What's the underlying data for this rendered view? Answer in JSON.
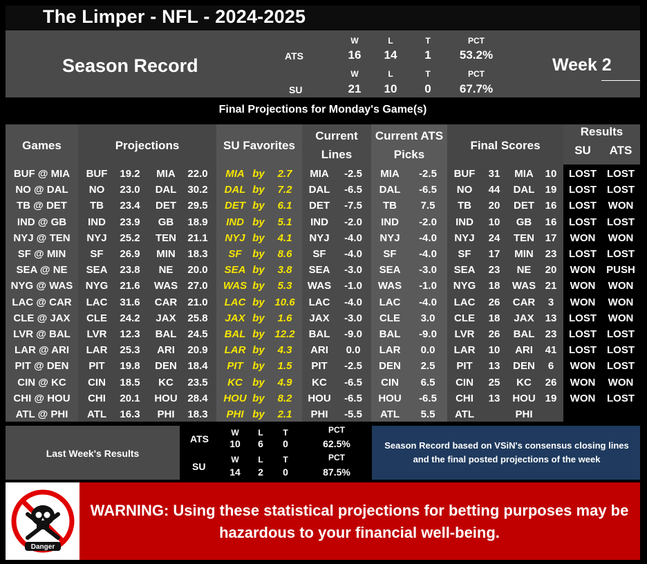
{
  "title": "The Limper - NFL - 2024-2025",
  "season": {
    "label": "Season Record",
    "week": "Week 2",
    "headers": {
      "w": "W",
      "l": "L",
      "t": "T",
      "pct": "PCT"
    },
    "ats": {
      "label": "ATS",
      "w": "16",
      "l": "14",
      "t": "1",
      "pct": "53.2%"
    },
    "su": {
      "label": "SU",
      "w": "21",
      "l": "10",
      "t": "0",
      "pct": "67.7%"
    }
  },
  "banner": "Final Projections for Monday's Game(s)",
  "headers": {
    "games": "Games",
    "projections": "Projections",
    "su_favorites": "SU Favorites",
    "current_lines_1": "Current",
    "current_lines_2": "Lines",
    "current_ats_1": "Current ATS",
    "current_ats_2": "Picks",
    "final_scores": "Final Scores",
    "results": "Results",
    "results_su": "SU",
    "results_ats": "ATS"
  },
  "by_word": "by",
  "games": [
    {
      "game": "BUF @ MIA",
      "p1": "BUF",
      "s1": "19.2",
      "p2": "MIA",
      "s2": "22.0",
      "fav": "MIA",
      "margin": "2.7",
      "lt": "MIA",
      "lv": "-2.5",
      "at": "MIA",
      "av": "-2.5",
      "f1": "BUF",
      "fs1": "31",
      "f2": "MIA",
      "fs2": "10",
      "su": "LOST",
      "ats": "LOST"
    },
    {
      "game": "NO @ DAL",
      "p1": "NO",
      "s1": "23.0",
      "p2": "DAL",
      "s2": "30.2",
      "fav": "DAL",
      "margin": "7.2",
      "lt": "DAL",
      "lv": "-6.5",
      "at": "DAL",
      "av": "-6.5",
      "f1": "NO",
      "fs1": "44",
      "f2": "DAL",
      "fs2": "19",
      "su": "LOST",
      "ats": "LOST"
    },
    {
      "game": "TB @ DET",
      "p1": "TB",
      "s1": "23.4",
      "p2": "DET",
      "s2": "29.5",
      "fav": "DET",
      "margin": "6.1",
      "lt": "DET",
      "lv": "-7.5",
      "at": "TB",
      "av": "7.5",
      "f1": "TB",
      "fs1": "20",
      "f2": "DET",
      "fs2": "16",
      "su": "LOST",
      "ats": "WON"
    },
    {
      "game": "IND @ GB",
      "p1": "IND",
      "s1": "23.9",
      "p2": "GB",
      "s2": "18.9",
      "fav": "IND",
      "margin": "5.1",
      "lt": "IND",
      "lv": "-2.0",
      "at": "IND",
      "av": "-2.0",
      "f1": "IND",
      "fs1": "10",
      "f2": "GB",
      "fs2": "16",
      "su": "LOST",
      "ats": "LOST"
    },
    {
      "game": "NYJ @ TEN",
      "p1": "NYJ",
      "s1": "25.2",
      "p2": "TEN",
      "s2": "21.1",
      "fav": "NYJ",
      "margin": "4.1",
      "lt": "NYJ",
      "lv": "-4.0",
      "at": "NYJ",
      "av": "-4.0",
      "f1": "NYJ",
      "fs1": "24",
      "f2": "TEN",
      "fs2": "17",
      "su": "WON",
      "ats": "WON"
    },
    {
      "game": "SF @ MIN",
      "p1": "SF",
      "s1": "26.9",
      "p2": "MIN",
      "s2": "18.3",
      "fav": "SF",
      "margin": "8.6",
      "lt": "SF",
      "lv": "-4.0",
      "at": "SF",
      "av": "-4.0",
      "f1": "SF",
      "fs1": "17",
      "f2": "MIN",
      "fs2": "23",
      "su": "LOST",
      "ats": "LOST"
    },
    {
      "game": "SEA @ NE",
      "p1": "SEA",
      "s1": "23.8",
      "p2": "NE",
      "s2": "20.0",
      "fav": "SEA",
      "margin": "3.8",
      "lt": "SEA",
      "lv": "-3.0",
      "at": "SEA",
      "av": "-3.0",
      "f1": "SEA",
      "fs1": "23",
      "f2": "NE",
      "fs2": "20",
      "su": "WON",
      "ats": "PUSH"
    },
    {
      "game": "NYG @ WAS",
      "p1": "NYG",
      "s1": "21.6",
      "p2": "WAS",
      "s2": "27.0",
      "fav": "WAS",
      "margin": "5.3",
      "lt": "WAS",
      "lv": "-1.0",
      "at": "WAS",
      "av": "-1.0",
      "f1": "NYG",
      "fs1": "18",
      "f2": "WAS",
      "fs2": "21",
      "su": "WON",
      "ats": "WON"
    },
    {
      "game": "LAC @ CAR",
      "p1": "LAC",
      "s1": "31.6",
      "p2": "CAR",
      "s2": "21.0",
      "fav": "LAC",
      "margin": "10.6",
      "lt": "LAC",
      "lv": "-4.0",
      "at": "LAC",
      "av": "-4.0",
      "f1": "LAC",
      "fs1": "26",
      "f2": "CAR",
      "fs2": "3",
      "su": "WON",
      "ats": "WON"
    },
    {
      "game": "CLE @ JAX",
      "p1": "CLE",
      "s1": "24.2",
      "p2": "JAX",
      "s2": "25.8",
      "fav": "JAX",
      "margin": "1.6",
      "lt": "JAX",
      "lv": "-3.0",
      "at": "CLE",
      "av": "3.0",
      "f1": "CLE",
      "fs1": "18",
      "f2": "JAX",
      "fs2": "13",
      "su": "LOST",
      "ats": "WON"
    },
    {
      "game": "LVR @ BAL",
      "p1": "LVR",
      "s1": "12.3",
      "p2": "BAL",
      "s2": "24.5",
      "fav": "BAL",
      "margin": "12.2",
      "lt": "BAL",
      "lv": "-9.0",
      "at": "BAL",
      "av": "-9.0",
      "f1": "LVR",
      "fs1": "26",
      "f2": "BAL",
      "fs2": "23",
      "su": "LOST",
      "ats": "LOST"
    },
    {
      "game": "LAR @ ARI",
      "p1": "LAR",
      "s1": "25.3",
      "p2": "ARI",
      "s2": "20.9",
      "fav": "LAR",
      "margin": "4.3",
      "lt": "ARI",
      "lv": "0.0",
      "at": "LAR",
      "av": "0.0",
      "f1": "LAR",
      "fs1": "10",
      "f2": "ARI",
      "fs2": "41",
      "su": "LOST",
      "ats": "LOST"
    },
    {
      "game": "PIT @ DEN",
      "p1": "PIT",
      "s1": "19.8",
      "p2": "DEN",
      "s2": "18.4",
      "fav": "PIT",
      "margin": "1.5",
      "lt": "PIT",
      "lv": "-2.5",
      "at": "DEN",
      "av": "2.5",
      "f1": "PIT",
      "fs1": "13",
      "f2": "DEN",
      "fs2": "6",
      "su": "WON",
      "ats": "LOST"
    },
    {
      "game": "CIN @ KC",
      "p1": "CIN",
      "s1": "18.5",
      "p2": "KC",
      "s2": "23.5",
      "fav": "KC",
      "margin": "4.9",
      "lt": "KC",
      "lv": "-6.5",
      "at": "CIN",
      "av": "6.5",
      "f1": "CIN",
      "fs1": "25",
      "f2": "KC",
      "fs2": "26",
      "su": "WON",
      "ats": "WON"
    },
    {
      "game": "CHI @ HOU",
      "p1": "CHI",
      "s1": "20.1",
      "p2": "HOU",
      "s2": "28.4",
      "fav": "HOU",
      "margin": "8.2",
      "lt": "HOU",
      "lv": "-6.5",
      "at": "HOU",
      "av": "-6.5",
      "f1": "CHI",
      "fs1": "13",
      "f2": "HOU",
      "fs2": "19",
      "su": "WON",
      "ats": "LOST"
    },
    {
      "game": "ATL @ PHI",
      "p1": "ATL",
      "s1": "16.3",
      "p2": "PHI",
      "s2": "18.3",
      "fav": "PHI",
      "margin": "2.1",
      "lt": "PHI",
      "lv": "-5.5",
      "at": "ATL",
      "av": "5.5",
      "f1": "ATL",
      "fs1": "",
      "f2": "PHI",
      "fs2": "",
      "su": "",
      "ats": ""
    }
  ],
  "last_week": {
    "label": "Last Week's Results",
    "headers": {
      "w": "W",
      "l": "L",
      "t": "T",
      "pct": "PCT"
    },
    "ats": {
      "label": "ATS",
      "w": "10",
      "l": "6",
      "t": "0",
      "pct": "62.5%"
    },
    "su": {
      "label": "SU",
      "w": "14",
      "l": "2",
      "t": "0",
      "pct": "87.5%"
    }
  },
  "note": "Season Record based on VSiN's consensus closing lines and the final posted projections of the week",
  "warning": {
    "text": "WARNING: Using these statistical projections for betting purposes may be hazardous to your financial well-being.",
    "icon": "danger-skull-icon",
    "icon_label": "Danger"
  },
  "colors": {
    "panel": "#4a4a4a",
    "favorite": "#f6e500",
    "note_bg": "#1f3a5e",
    "warning_bg": "#c00000"
  }
}
